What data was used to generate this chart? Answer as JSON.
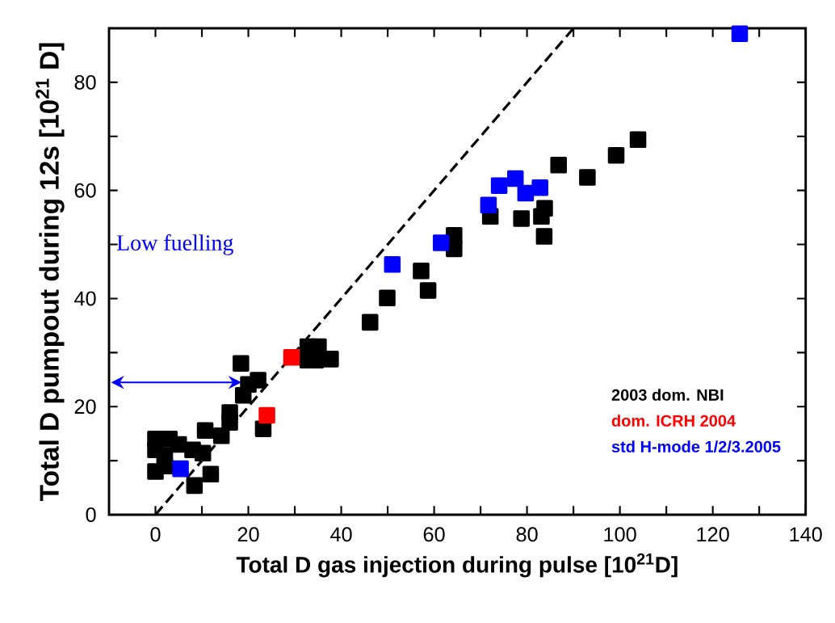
{
  "chart_data": {
    "type": "scatter",
    "xlabel": "Total D gas injection during pulse  [10$^{21}$D]",
    "ylabel": "Total D pumpout during 12s [10$^{21}$ D]",
    "xlim": [
      -10,
      140
    ],
    "ylim": [
      0,
      90
    ],
    "xticks": [
      0,
      {
        "value": 10,
        "label": null
      },
      20,
      {
        "value": 30,
        "label": null
      },
      40,
      {
        "value": 50,
        "label": null
      },
      60,
      {
        "value": 70,
        "label": null
      },
      80,
      {
        "value": 90,
        "label": null
      },
      100,
      {
        "value": 110,
        "label": null
      },
      120,
      {
        "value": 130,
        "label": null
      },
      140
    ],
    "yticks": [
      0,
      {
        "value": 10,
        "label": null
      },
      20,
      {
        "value": 30,
        "label": null
      },
      40,
      {
        "value": 50,
        "label": null
      },
      60,
      {
        "value": 70,
        "label": null
      },
      80
    ],
    "marker": "square",
    "legend": "bottom right",
    "annotations": [
      "Low fuelling"
    ],
    "series": [
      {
        "type": "line",
        "color": "#000000",
        "marker": "none",
        "line_style": "dashed",
        "x": [
          0,
          90
        ],
        "values": [
          0,
          90
        ]
      },
      {
        "name": "2003 dom. NBI",
        "color": "#000000",
        "x": [
          0,
          0,
          0,
          2,
          3,
          5,
          8,
          2,
          8.4,
          10.2,
          10.7,
          11.9,
          14.2,
          16.0,
          16.0,
          18.4,
          18.9,
          20.0,
          22.1,
          23.2,
          32.8,
          35.1,
          32.8,
          34.5,
          37.7,
          46.2,
          49.9,
          57.2,
          58.7,
          64.3,
          64.3,
          72.1,
          78.8,
          83.8,
          83.1,
          83.7,
          86.8,
          93.0,
          99.2,
          103.9
        ],
        "values": [
          14,
          12,
          8,
          11,
          14,
          13,
          12,
          9,
          5.4,
          11.4,
          15.6,
          7.5,
          14.6,
          18.9,
          17.1,
          28.0,
          22.1,
          24.1,
          24.9,
          15.9,
          31.1,
          31.1,
          28.6,
          28.6,
          28.8,
          35.6,
          40.1,
          45.1,
          41.5,
          51.7,
          49.2,
          55.2,
          54.8,
          56.7,
          55.2,
          51.5,
          64.7,
          62.4,
          66.5,
          69.4
        ]
      },
      {
        "name": "dom. ICRH 2004",
        "color": "#ff0000",
        "x": [
          29.3,
          24.0
        ],
        "values": [
          29.1,
          18.4
        ]
      },
      {
        "name": "std H-mode 1/2/3.2005",
        "color": "#0000ff",
        "x": [
          5.4,
          51.0,
          61.5,
          71.7,
          74.0,
          77.5,
          79.7,
          82.8,
          125.8
        ],
        "values": [
          8.5,
          46.3,
          50.3,
          57.3,
          60.9,
          62.2,
          59.5,
          60.5,
          89.0
        ]
      }
    ]
  }
}
